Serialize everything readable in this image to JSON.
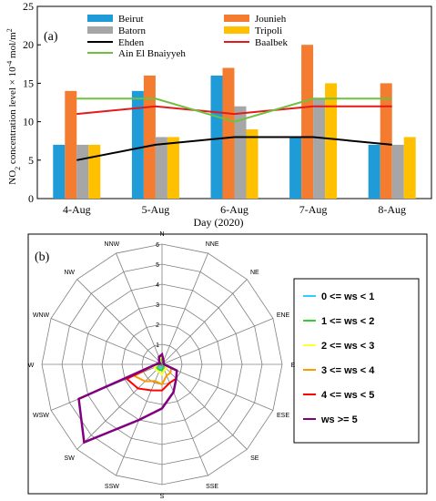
{
  "chart_data": [
    {
      "type": "bar",
      "panel_label": "(a)",
      "categories": [
        "4-Aug",
        "5-Aug",
        "6-Aug",
        "7-Aug",
        "8-Aug"
      ],
      "series": [
        {
          "name": "Beirut",
          "color": "#1f9bd7",
          "values": [
            7,
            14,
            16,
            8,
            7
          ]
        },
        {
          "name": "Jounieh",
          "color": "#f47c30",
          "values": [
            14,
            16,
            17,
            20,
            15
          ]
        },
        {
          "name": "Batorn",
          "color": "#a6a6a6",
          "values": [
            7,
            8,
            12,
            13,
            7
          ]
        },
        {
          "name": "Tripoli",
          "color": "#ffc000",
          "values": [
            7,
            8,
            9,
            15,
            8
          ]
        }
      ],
      "lines": [
        {
          "name": "Ehden",
          "color": "#000000",
          "values": [
            5,
            7,
            8,
            8,
            7
          ]
        },
        {
          "name": "Baalbek",
          "color": "#e31a1c",
          "values": [
            11,
            12,
            11,
            12,
            12
          ]
        },
        {
          "name": "Ain El Bnaiyyeh",
          "color": "#70c040",
          "values": [
            13,
            13,
            10,
            13,
            13
          ]
        }
      ],
      "ylim": [
        0,
        25
      ],
      "yticks": [
        "0",
        "5",
        "10",
        "15",
        "20",
        "25"
      ],
      "ylabel_parts": [
        "NO",
        "2",
        " concentration level × 10",
        "-4",
        "  mol/m",
        "2"
      ],
      "xlabel": "Day (2020)"
    },
    {
      "type": "radar",
      "panel_label": "(b)",
      "directions": [
        "N",
        "NNE",
        "NE",
        "ENE",
        "E",
        "ESE",
        "SE",
        "SSE",
        "S",
        "SSW",
        "SW",
        "WSW",
        "W",
        "WNW",
        "NW",
        "NNW"
      ],
      "rmax": 6,
      "rticks": [
        "0",
        "1",
        "2",
        "3",
        "4",
        "5",
        "6"
      ],
      "legend": [
        {
          "label": "0 <= ws < 1",
          "color": "#33ccff"
        },
        {
          "label": "1 <= ws < 2",
          "color": "#33cc33"
        },
        {
          "label": "2 <= ws < 3",
          "color": "#ffff33"
        },
        {
          "label": "3 <= ws < 4",
          "color": "#ff9900"
        },
        {
          "label": "4 <= ws < 5",
          "color": "#ff0000"
        },
        {
          "label": "ws >= 5",
          "color": "#800080"
        }
      ],
      "series": [
        {
          "name": "0 <= ws < 1",
          "values": [
            0.2,
            0.1,
            0.1,
            0.1,
            0.1,
            0.1,
            0.1,
            0.1,
            0.2,
            0.2,
            0.2,
            0.2,
            0.1,
            0.1,
            0.1,
            0.1
          ]
        },
        {
          "name": "1 <= ws < 2",
          "values": [
            0.3,
            0.1,
            0.1,
            0.1,
            0.1,
            0.1,
            0.1,
            0.2,
            0.3,
            0.3,
            0.3,
            0.3,
            0.1,
            0.1,
            0.1,
            0.2
          ]
        },
        {
          "name": "2 <= ws < 3",
          "values": [
            0.4,
            0.2,
            0.1,
            0.1,
            0.1,
            0.2,
            0.3,
            0.3,
            0.5,
            0.4,
            0.4,
            0.4,
            0.2,
            0.1,
            0.1,
            0.3
          ]
        },
        {
          "name": "3 <= ws < 4",
          "values": [
            0.5,
            0.2,
            0.1,
            0.1,
            0.1,
            0.5,
            0.6,
            0.6,
            1.0,
            0.9,
            1.2,
            1.5,
            0.3,
            0.1,
            0.2,
            0.4
          ]
        },
        {
          "name": "4 <= ws < 5",
          "values": [
            0.5,
            0.2,
            0.1,
            0.1,
            0.1,
            0.8,
            1.0,
            1.0,
            1.3,
            1.4,
            1.7,
            1.9,
            0.3,
            0.1,
            0.2,
            0.4
          ]
        },
        {
          "name": "ws >= 5",
          "values": [
            0.5,
            0.2,
            0.1,
            0.1,
            0.1,
            0.8,
            1.0,
            1.5,
            2.2,
            3.0,
            5.5,
            4.5,
            0.3,
            0.1,
            0.2,
            0.4
          ]
        }
      ]
    }
  ]
}
